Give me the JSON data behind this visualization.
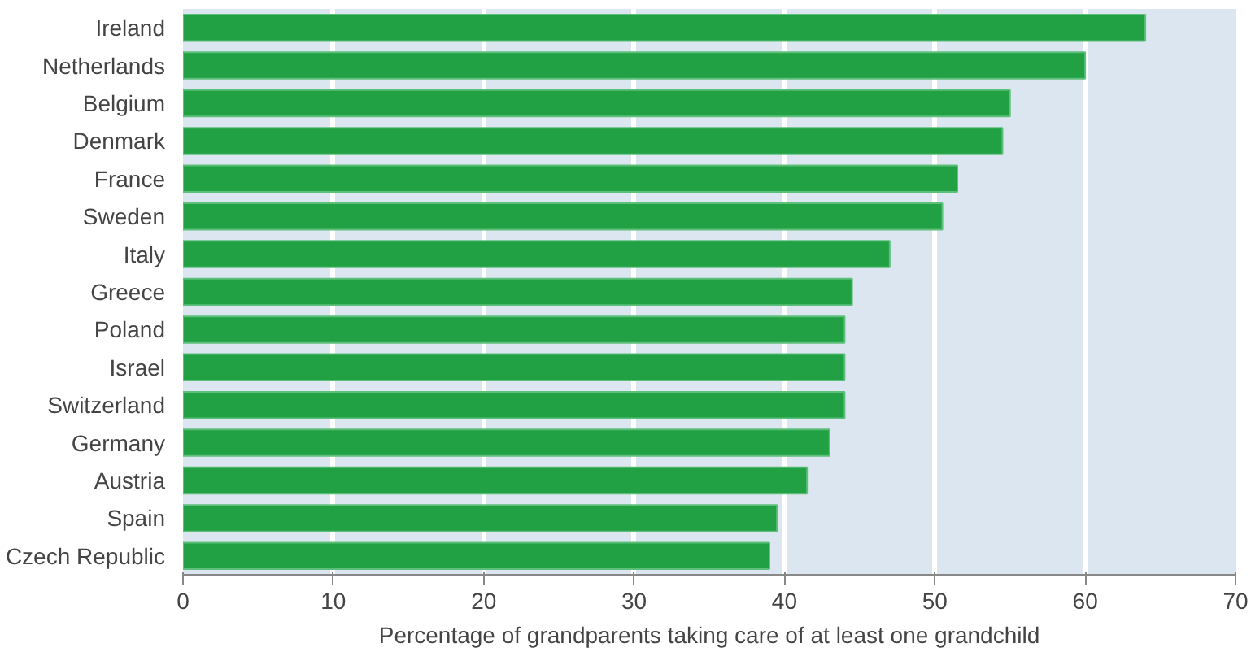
{
  "chart_data": {
    "type": "bar",
    "orientation": "horizontal",
    "xlabel": "Percentage of grandparents taking care of at least one grandchild",
    "categories": [
      "Ireland",
      "Netherlands",
      "Belgium",
      "Denmark",
      "France",
      "Sweden",
      "Italy",
      "Greece",
      "Poland",
      "Israel",
      "Switzerland",
      "Germany",
      "Austria",
      "Spain",
      "Czech Republic"
    ],
    "values": [
      64,
      60,
      55,
      54.5,
      51.5,
      50.5,
      47,
      44.5,
      44,
      44,
      44,
      43,
      41.5,
      39.5,
      39
    ],
    "color": "#21a044",
    "xlim": [
      0,
      70
    ],
    "xticks": [
      0,
      10,
      20,
      30,
      40,
      50,
      60,
      70
    ],
    "grid": "x"
  }
}
